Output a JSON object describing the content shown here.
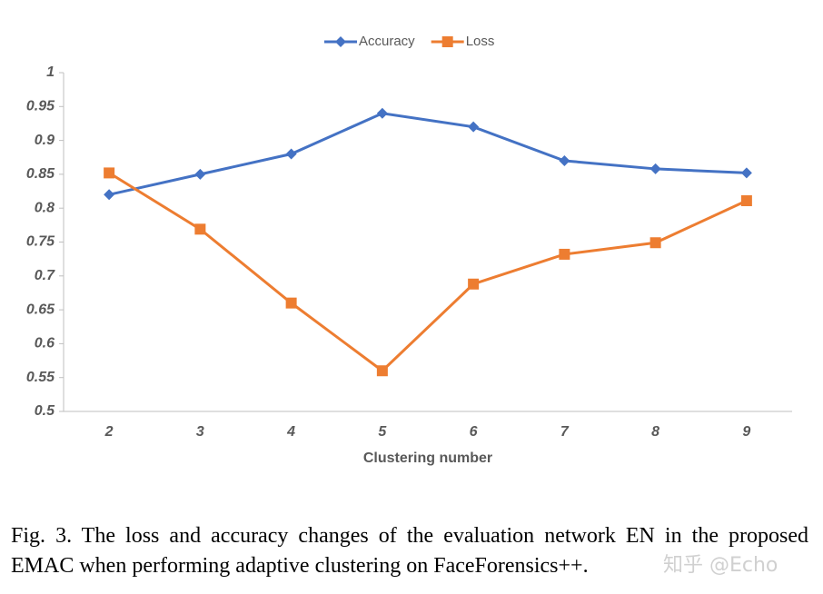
{
  "chart_data": {
    "type": "line",
    "x_label": "Clustering number",
    "categories": [
      2,
      3,
      4,
      5,
      6,
      7,
      8,
      9
    ],
    "series": [
      {
        "name": "Accuracy",
        "color": "#4472c4",
        "marker": "diamond",
        "values": [
          0.82,
          0.85,
          0.88,
          0.94,
          0.92,
          0.87,
          0.858,
          0.852
        ]
      },
      {
        "name": "Loss",
        "color": "#ed7d31",
        "marker": "square",
        "values": [
          0.852,
          0.769,
          0.66,
          0.56,
          0.688,
          0.732,
          0.749,
          0.811
        ]
      }
    ],
    "ylim": [
      0.5,
      1
    ],
    "yticks": [
      0.5,
      0.55,
      0.6,
      0.65,
      0.7,
      0.75,
      0.8,
      0.85,
      0.9,
      0.95,
      1
    ],
    "grid": false,
    "legend": "top"
  },
  "caption": "Fig. 3.  The loss and accuracy changes of the evaluation network EN in the proposed EMAC when performing adaptive clustering on FaceForensics++.",
  "watermark": "知乎 @Echo"
}
